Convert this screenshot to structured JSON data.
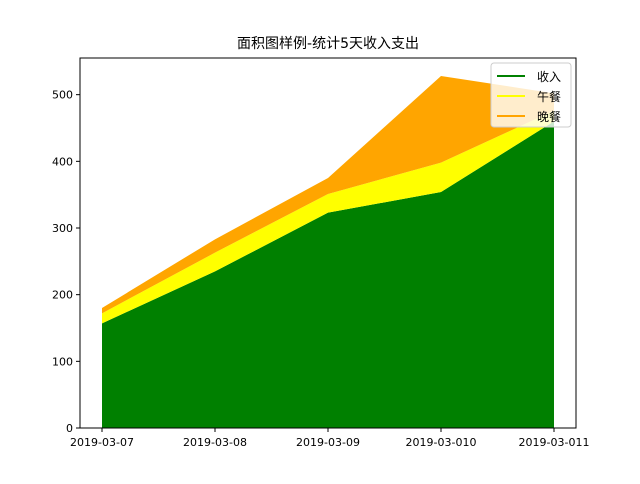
{
  "chart_data": {
    "type": "area",
    "stacked": true,
    "title": "面积图样例-统计5天收入支出",
    "xlabel": "",
    "ylabel": "",
    "categories": [
      "2019-03-07",
      "2019-03-08",
      "2019-03-09",
      "2019-03-010",
      "2019-03-011"
    ],
    "ylim": [
      0,
      555
    ],
    "yticks": [
      0,
      100,
      200,
      300,
      400,
      500
    ],
    "series": [
      {
        "name": "收入",
        "color": "#008000",
        "values": [
          157,
          235,
          323,
          354,
          460
        ]
      },
      {
        "name": "午餐",
        "color": "#ffff00",
        "values": [
          15,
          28,
          28,
          44,
          16
        ]
      },
      {
        "name": "晚餐",
        "color": "#ffa500",
        "values": [
          8,
          20,
          24,
          130,
          26
        ]
      }
    ],
    "grid": false,
    "legend_position": "top-right"
  }
}
